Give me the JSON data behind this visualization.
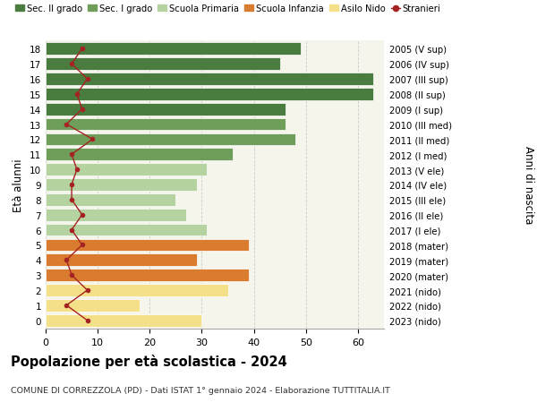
{
  "ages": [
    18,
    17,
    16,
    15,
    14,
    13,
    12,
    11,
    10,
    9,
    8,
    7,
    6,
    5,
    4,
    3,
    2,
    1,
    0
  ],
  "right_labels": [
    "2005 (V sup)",
    "2006 (IV sup)",
    "2007 (III sup)",
    "2008 (II sup)",
    "2009 (I sup)",
    "2010 (III med)",
    "2011 (II med)",
    "2012 (I med)",
    "2013 (V ele)",
    "2014 (IV ele)",
    "2015 (III ele)",
    "2016 (II ele)",
    "2017 (I ele)",
    "2018 (mater)",
    "2019 (mater)",
    "2020 (mater)",
    "2021 (nido)",
    "2022 (nido)",
    "2023 (nido)"
  ],
  "bar_values": [
    49,
    45,
    63,
    63,
    46,
    46,
    48,
    36,
    31,
    29,
    25,
    27,
    31,
    39,
    29,
    39,
    35,
    18,
    30
  ],
  "bar_colors": [
    "#4a7c3f",
    "#4a7c3f",
    "#4a7c3f",
    "#4a7c3f",
    "#4a7c3f",
    "#6e9e5a",
    "#6e9e5a",
    "#6e9e5a",
    "#b5d3a0",
    "#b5d3a0",
    "#b5d3a0",
    "#b5d3a0",
    "#b5d3a0",
    "#d97c30",
    "#d97c30",
    "#d97c30",
    "#f5e08a",
    "#f5e08a",
    "#f5e08a"
  ],
  "stranieri_values": [
    7,
    5,
    8,
    6,
    7,
    4,
    9,
    5,
    6,
    5,
    5,
    7,
    5,
    7,
    4,
    5,
    8,
    4,
    8
  ],
  "legend_labels": [
    "Sec. II grado",
    "Sec. I grado",
    "Scuola Primaria",
    "Scuola Infanzia",
    "Asilo Nido",
    "Stranieri"
  ],
  "legend_colors": [
    "#4a7c3f",
    "#6e9e5a",
    "#b5d3a0",
    "#d97c30",
    "#f5e08a",
    "#a52222"
  ],
  "title": "Popolazione per età scolastica - 2024",
  "subtitle": "COMUNE DI CORREZZOLA (PD) - Dati ISTAT 1° gennaio 2024 - Elaborazione TUTTITALIA.IT",
  "ylabel_left": "Età alunni",
  "ylabel_right": "Anni di nascita",
  "xlim": [
    0,
    65
  ],
  "ylim_min": -0.55,
  "ylim_max": 18.55,
  "background_color": "#ffffff",
  "plot_bg_color": "#f5f5ec",
  "grid_color": "#cccccc",
  "bar_height": 0.82
}
